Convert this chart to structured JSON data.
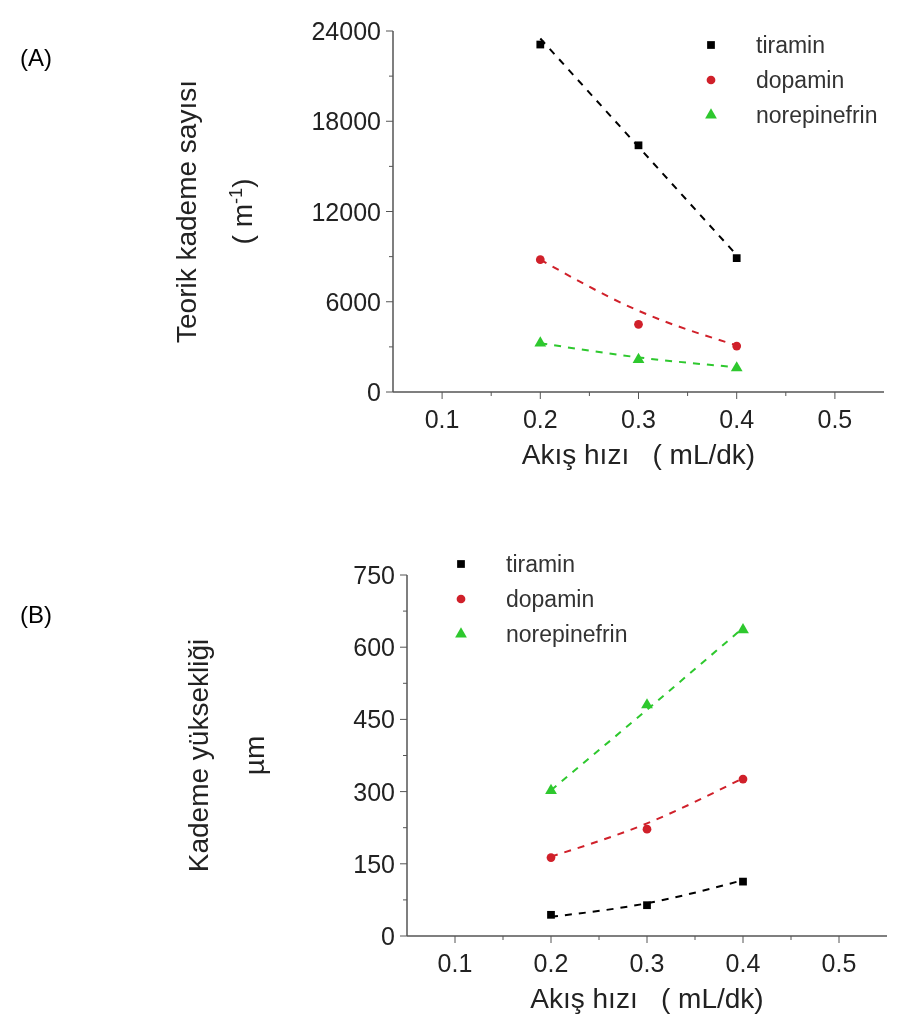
{
  "chart_data": [
    {
      "type": "scatter",
      "annotations": [
        "(A)"
      ],
      "xlabel": "Akış hızı   ( mL/dk)",
      "ylabel": "Teorik kademe sayısı\n( m$^{-1}$)",
      "xlim": [
        0.05,
        0.55
      ],
      "ylim": [
        0,
        24000
      ],
      "xticks": [
        0.1,
        {
          "value": 0.15,
          "label": null
        },
        0.2,
        {
          "value": 0.25,
          "label": null
        },
        0.3,
        {
          "value": 0.35,
          "label": null
        },
        0.4,
        {
          "value": 0.45,
          "label": null
        },
        0.5
      ],
      "yticks": [
        0,
        {
          "value": 3000,
          "label": null
        },
        6000,
        {
          "value": 9000,
          "label": null
        },
        12000,
        {
          "value": 15000,
          "label": null
        },
        18000,
        {
          "value": 21000,
          "label": null
        },
        24000
      ],
      "legend": "top right",
      "grid": false,
      "series": [
        {
          "name": "tiramin",
          "marker": "square",
          "color": "#000000",
          "x": [
            0.2,
            0.3,
            0.4
          ],
          "values": [
            23100,
            16400,
            8900
          ]
        },
        {
          "name": "dopamin",
          "marker": "circle",
          "color": "#d0202a",
          "x": [
            0.2,
            0.3,
            0.4
          ],
          "values": [
            8800,
            4500,
            3050
          ]
        },
        {
          "name": "norepinefrin",
          "marker": "triangle",
          "color": "#2ec82e",
          "x": [
            0.2,
            0.3,
            0.4
          ],
          "values": [
            3250,
            2150,
            1600
          ]
        },
        {
          "type": "line",
          "marker": "none",
          "line_style": "dashed",
          "color": "#000000",
          "x": [
            0.2,
            0.4
          ],
          "values": [
            23500,
            9100
          ]
        },
        {
          "type": "line",
          "marker": "none",
          "line_style": "dashed",
          "color": "#d0202a",
          "x": [
            0.2,
            0.3,
            0.4
          ],
          "values": [
            8800,
            5400,
            3100
          ]
        },
        {
          "type": "line",
          "marker": "none",
          "line_style": "dashed",
          "color": "#2ec82e",
          "x": [
            0.2,
            0.3,
            0.4
          ],
          "values": [
            3250,
            2300,
            1650
          ]
        }
      ]
    },
    {
      "type": "scatter",
      "annotations": [
        "(B)"
      ],
      "xlabel": "Akış hızı   ( mL/dk)",
      "ylabel": "Kademe yüksekliği\nµm",
      "xlim": [
        0.05,
        0.55
      ],
      "ylim": [
        0,
        750
      ],
      "xticks": [
        0.1,
        {
          "value": 0.15,
          "label": null
        },
        0.2,
        {
          "value": 0.25,
          "label": null
        },
        0.3,
        {
          "value": 0.35,
          "label": null
        },
        0.4,
        {
          "value": 0.45,
          "label": null
        },
        0.5
      ],
      "yticks": [
        0,
        {
          "value": 75,
          "label": null
        },
        150,
        {
          "value": 225,
          "label": null
        },
        300,
        {
          "value": 375,
          "label": null
        },
        450,
        {
          "value": 525,
          "label": null
        },
        600,
        {
          "value": 675,
          "label": null
        },
        750
      ],
      "legend": "top",
      "grid": false,
      "series": [
        {
          "name": "tiramin",
          "marker": "square",
          "color": "#000000",
          "x": [
            0.2,
            0.3,
            0.4
          ],
          "values": [
            44,
            64,
            113
          ]
        },
        {
          "name": "dopamin",
          "marker": "circle",
          "color": "#d0202a",
          "x": [
            0.2,
            0.3,
            0.4
          ],
          "values": [
            163,
            222,
            326
          ]
        },
        {
          "name": "norepinefrin",
          "marker": "triangle",
          "color": "#2ec82e",
          "x": [
            0.2,
            0.3,
            0.4
          ],
          "values": [
            302,
            480,
            636
          ]
        },
        {
          "type": "line",
          "marker": "none",
          "line_style": "dashed",
          "color": "#000000",
          "x": [
            0.2,
            0.3,
            0.4
          ],
          "values": [
            40,
            68,
            116
          ]
        },
        {
          "type": "line",
          "marker": "none",
          "line_style": "dashed",
          "color": "#d0202a",
          "x": [
            0.2,
            0.3,
            0.4
          ],
          "values": [
            165,
            234,
            328
          ]
        },
        {
          "type": "line",
          "marker": "none",
          "line_style": "dashed",
          "color": "#2ec82e",
          "x": [
            0.2,
            0.3,
            0.4
          ],
          "values": [
            303,
            470,
            640
          ]
        }
      ]
    }
  ]
}
